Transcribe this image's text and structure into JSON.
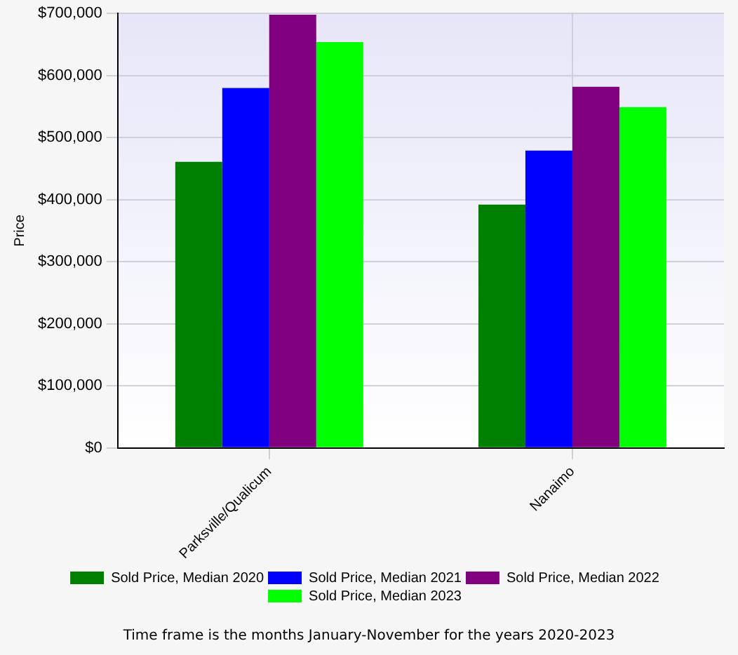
{
  "chart_data": {
    "type": "bar",
    "ylabel": "Price",
    "categories": [
      "Parksville/Qualicum",
      "Nanaimo"
    ],
    "series": [
      {
        "name": "Sold Price, Median 2020",
        "color": "#008000",
        "values": [
          461000,
          392000
        ]
      },
      {
        "name": "Sold Price, Median 2021",
        "color": "#0000ff",
        "values": [
          580000,
          479000
        ]
      },
      {
        "name": "Sold Price, Median 2022",
        "color": "#800080",
        "values": [
          698000,
          582000
        ]
      },
      {
        "name": "Sold Price, Median 2023",
        "color": "#00ff00",
        "values": [
          654000,
          549000
        ]
      }
    ],
    "ylim": [
      0,
      700000
    ],
    "yticks": [
      {
        "value": 0,
        "label": "$0"
      },
      {
        "value": 100000,
        "label": "$100,000"
      },
      {
        "value": 200000,
        "label": "$200,000"
      },
      {
        "value": 300000,
        "label": "$300,000"
      },
      {
        "value": 400000,
        "label": "$400,000"
      },
      {
        "value": 500000,
        "label": "$500,000"
      },
      {
        "value": 600000,
        "label": "$600,000"
      },
      {
        "value": 700000,
        "label": "$700,000"
      }
    ],
    "grid": true,
    "legend": "bottom",
    "annotations": [
      "Time frame is the months January-November for the years 2020-2023"
    ]
  }
}
